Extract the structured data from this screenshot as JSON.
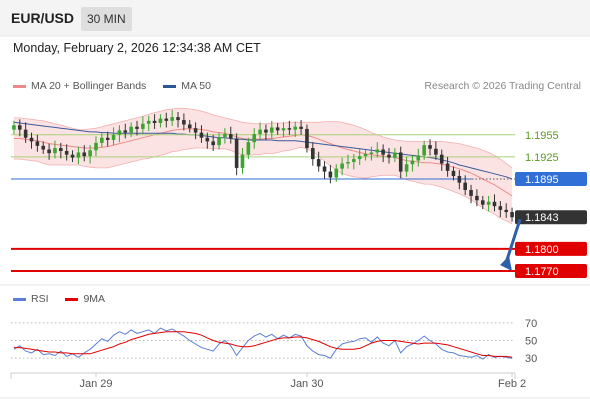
{
  "header": {
    "symbol": "EUR/USD",
    "timeframe": "30 MIN",
    "datetime": "Monday, February 2, 2026 12:34:38 AM CET"
  },
  "legend": {
    "bollinger": {
      "label": "MA 20 + Bollinger Bands",
      "color": "#f08a8a"
    },
    "ma50": {
      "label": "MA 50",
      "color": "#2f5597"
    },
    "copyright": "Research © 2026 Trading Central"
  },
  "rsi_legend": {
    "rsi": {
      "label": "RSI",
      "color": "#5b7fd6"
    },
    "ma9": {
      "label": "9MA",
      "color": "#e00000"
    }
  },
  "chart_data": [
    {
      "type": "candlestick",
      "ylim": [
        1.1755,
        1.2005
      ],
      "x_ticks": [
        {
          "label": "Jan 29",
          "index": 14
        },
        {
          "label": "Jan 30",
          "index": 50
        },
        {
          "label": "Feb 2",
          "index": 85
        }
      ],
      "candles": {
        "count": 86,
        "close": [
          1.1968,
          1.1962,
          1.1951,
          1.1946,
          1.194,
          1.1935,
          1.193,
          1.1937,
          1.1933,
          1.1928,
          1.1924,
          1.1931,
          1.1926,
          1.1934,
          1.1944,
          1.1951,
          1.1948,
          1.1955,
          1.1961,
          1.1958,
          1.1966,
          1.1963,
          1.197,
          1.1974,
          1.1971,
          1.1977,
          1.1974,
          1.1979,
          1.1975,
          1.1969,
          1.1964,
          1.1958,
          1.1951,
          1.1946,
          1.1941,
          1.1952,
          1.1956,
          1.195,
          1.191,
          1.1928,
          1.1945,
          1.1956,
          1.1962,
          1.1958,
          1.1965,
          1.1961,
          1.1964,
          1.1962,
          1.1966,
          1.1963,
          1.1937,
          1.1922,
          1.1912,
          1.1905,
          1.1897,
          1.1909,
          1.1916,
          1.1918,
          1.1922,
          1.1926,
          1.1929,
          1.1931,
          1.1935,
          1.1928,
          1.1924,
          1.1931,
          1.1905,
          1.1915,
          1.192,
          1.1927,
          1.1941,
          1.1936,
          1.1928,
          1.1916,
          1.1906,
          1.1899,
          1.189,
          1.188,
          1.1872,
          1.1866,
          1.186,
          1.1864,
          1.1858,
          1.1853,
          1.185,
          1.1843
        ],
        "open": [
          1.1962,
          1.1968,
          1.1962,
          1.1951,
          1.1946,
          1.194,
          1.1935,
          1.193,
          1.1937,
          1.1933,
          1.1928,
          1.1924,
          1.1931,
          1.1926,
          1.1934,
          1.1944,
          1.1951,
          1.1948,
          1.1955,
          1.1961,
          1.1958,
          1.1966,
          1.1963,
          1.197,
          1.1974,
          1.1971,
          1.1977,
          1.1974,
          1.1979,
          1.1975,
          1.1969,
          1.1964,
          1.1958,
          1.1951,
          1.1946,
          1.1941,
          1.1952,
          1.1956,
          1.195,
          1.191,
          1.1928,
          1.1945,
          1.1956,
          1.1962,
          1.1958,
          1.1965,
          1.1961,
          1.1964,
          1.1962,
          1.1966,
          1.1963,
          1.1937,
          1.1922,
          1.1912,
          1.1905,
          1.1897,
          1.1909,
          1.1916,
          1.1918,
          1.1922,
          1.1926,
          1.1929,
          1.1931,
          1.1935,
          1.1928,
          1.1924,
          1.1931,
          1.1905,
          1.1915,
          1.192,
          1.1927,
          1.1941,
          1.1936,
          1.1928,
          1.1916,
          1.1906,
          1.1899,
          1.189,
          1.188,
          1.1872,
          1.1866,
          1.186,
          1.1864,
          1.1858,
          1.1853,
          1.185
        ],
        "up_color": "#3aa52f",
        "down_color": "#333333"
      },
      "ma20": [
        1.195,
        1.195,
        1.1949,
        1.1948,
        1.1947,
        1.1945,
        1.1943,
        1.1942,
        1.1941,
        1.194,
        1.1939,
        1.1938,
        1.1937,
        1.1937,
        1.1937,
        1.1938,
        1.1939,
        1.1941,
        1.1943,
        1.1945,
        1.1947,
        1.1949,
        1.1951,
        1.1953,
        1.1955,
        1.1957,
        1.1959,
        1.1961,
        1.1962,
        1.1963,
        1.1963,
        1.1963,
        1.1962,
        1.1961,
        1.1959,
        1.1958,
        1.1957,
        1.1955,
        1.1952,
        1.195,
        1.1949,
        1.1949,
        1.1949,
        1.195,
        1.195,
        1.1951,
        1.1952,
        1.1953,
        1.1954,
        1.1955,
        1.1954,
        1.1952,
        1.1949,
        1.1946,
        1.1943,
        1.194,
        1.1937,
        1.1935,
        1.1933,
        1.1931,
        1.1929,
        1.1928,
        1.1927,
        1.1926,
        1.1925,
        1.1924,
        1.1922,
        1.192,
        1.1919,
        1.1918,
        1.1917,
        1.1917,
        1.1916,
        1.1915,
        1.1913,
        1.1911,
        1.1909,
        1.1906,
        1.1903,
        1.1899,
        1.1895,
        1.1891,
        1.1887,
        1.1882,
        1.1877,
        1.1872
      ],
      "bb_upper": [
        1.1978,
        1.1978,
        1.1977,
        1.1976,
        1.1975,
        1.1974,
        1.1972,
        1.197,
        1.1968,
        1.1966,
        1.1964,
        1.1962,
        1.1962,
        1.1963,
        1.1964,
        1.1966,
        1.1968,
        1.197,
        1.1972,
        1.1974,
        1.1976,
        1.1978,
        1.198,
        1.1983,
        1.1985,
        1.1987,
        1.1989,
        1.199,
        1.1991,
        1.1991,
        1.199,
        1.1989,
        1.1987,
        1.1985,
        1.1982,
        1.198,
        1.1978,
        1.1976,
        1.1974,
        1.1972,
        1.1971,
        1.197,
        1.197,
        1.197,
        1.1971,
        1.1971,
        1.1971,
        1.1972,
        1.1972,
        1.1972,
        1.1972,
        1.1972,
        1.1972,
        1.1973,
        1.1973,
        1.1973,
        1.1972,
        1.197,
        1.1968,
        1.1965,
        1.1962,
        1.1958,
        1.1955,
        1.1952,
        1.195,
        1.1948,
        1.1947,
        1.1946,
        1.1946,
        1.1946,
        1.1946,
        1.1946,
        1.1946,
        1.1946,
        1.1945,
        1.1944,
        1.1943,
        1.1941,
        1.1939,
        1.1937,
        1.1934,
        1.1931,
        1.1927,
        1.1922,
        1.1916,
        1.191
      ],
      "bb_lower": [
        1.1922,
        1.1922,
        1.1921,
        1.192,
        1.1919,
        1.1916,
        1.1914,
        1.1914,
        1.1914,
        1.1914,
        1.1914,
        1.1914,
        1.1912,
        1.1911,
        1.191,
        1.191,
        1.191,
        1.1912,
        1.1914,
        1.1916,
        1.1918,
        1.192,
        1.1922,
        1.1923,
        1.1925,
        1.1927,
        1.1929,
        1.1932,
        1.1933,
        1.1935,
        1.1936,
        1.1937,
        1.1937,
        1.1937,
        1.1936,
        1.1936,
        1.1936,
        1.1934,
        1.193,
        1.1928,
        1.1927,
        1.1928,
        1.1928,
        1.193,
        1.1929,
        1.1931,
        1.1933,
        1.1934,
        1.1936,
        1.1938,
        1.1936,
        1.1932,
        1.1926,
        1.1919,
        1.1913,
        1.1907,
        1.1902,
        1.19,
        1.1898,
        1.1897,
        1.1896,
        1.1898,
        1.1899,
        1.19,
        1.19,
        1.19,
        1.1897,
        1.1894,
        1.1892,
        1.189,
        1.1888,
        1.1888,
        1.1886,
        1.1884,
        1.1881,
        1.1878,
        1.1875,
        1.1871,
        1.1867,
        1.1861,
        1.1856,
        1.1851,
        1.1847,
        1.1842,
        1.1838,
        1.1834
      ],
      "ma50": [
        1.1972,
        1.1971,
        1.197,
        1.1969,
        1.1968,
        1.1967,
        1.1966,
        1.1965,
        1.1964,
        1.1963,
        1.1962,
        1.1961,
        1.196,
        1.1959,
        1.1959,
        1.1958,
        1.1958,
        1.1957,
        1.1957,
        1.1957,
        1.1957,
        1.1957,
        1.1957,
        1.1957,
        1.1957,
        1.1957,
        1.1957,
        1.1957,
        1.1956,
        1.1956,
        1.1955,
        1.1955,
        1.1954,
        1.1953,
        1.1952,
        1.1951,
        1.1951,
        1.195,
        1.1949,
        1.1949,
        1.1948,
        1.1948,
        1.1948,
        1.1948,
        1.1948,
        1.1947,
        1.1947,
        1.1947,
        1.1947,
        1.1946,
        1.1945,
        1.1944,
        1.1943,
        1.1942,
        1.1941,
        1.194,
        1.1939,
        1.1938,
        1.1937,
        1.1936,
        1.1935,
        1.1934,
        1.1933,
        1.1932,
        1.1931,
        1.193,
        1.1929,
        1.1928,
        1.1927,
        1.1926,
        1.1925,
        1.1924,
        1.1923,
        1.1921,
        1.1919,
        1.1917,
        1.1914,
        1.1912,
        1.191,
        1.1908,
        1.1906,
        1.1904,
        1.1902,
        1.19,
        1.1898,
        1.1895
      ],
      "levels": [
        {
          "value": 1.1955,
          "label": "1.1955",
          "kind": "resistance",
          "color": "#a8d27a",
          "text_color": "#5a9a1e"
        },
        {
          "value": 1.1925,
          "label": "1.1925",
          "kind": "resistance",
          "color": "#a8d27a",
          "text_color": "#5a9a1e"
        },
        {
          "value": 1.1895,
          "label": "1.1895",
          "kind": "pivot",
          "color": "#2f6fd6",
          "text_color": "#ffffff"
        },
        {
          "value": 1.1843,
          "label": "1.1843",
          "kind": "last-price",
          "color": "#333333",
          "text_color": "#ffffff"
        },
        {
          "value": 1.18,
          "label": "1.1800",
          "kind": "support",
          "color": "#e00000",
          "text_color": "#ffffff"
        },
        {
          "value": 1.177,
          "label": "1.1770",
          "kind": "support",
          "color": "#e00000",
          "text_color": "#ffffff"
        }
      ],
      "arrow": {
        "from_value": 1.1843,
        "to_value": 1.177,
        "color": "#2f5fa8"
      }
    },
    {
      "type": "line",
      "indicator": "RSI",
      "ylim": [
        20,
        80
      ],
      "y_ticks": [
        {
          "value": 70,
          "label": "70"
        },
        {
          "value": 50,
          "label": "50"
        },
        {
          "value": 30,
          "label": "30"
        }
      ],
      "series": [
        {
          "name": "RSI",
          "color": "#5b7fd6",
          "values": [
            40,
            44,
            38,
            36,
            40,
            34,
            35,
            33,
            38,
            32,
            35,
            31,
            36,
            40,
            46,
            52,
            49,
            56,
            60,
            57,
            62,
            58,
            60,
            62,
            58,
            64,
            61,
            63,
            59,
            55,
            50,
            46,
            42,
            40,
            38,
            46,
            50,
            44,
            33,
            42,
            50,
            55,
            58,
            54,
            57,
            52,
            56,
            53,
            57,
            55,
            44,
            38,
            34,
            33,
            30,
            40,
            46,
            48,
            49,
            52,
            53,
            48,
            54,
            47,
            44,
            50,
            36,
            43,
            46,
            50,
            55,
            50,
            46,
            40,
            37,
            36,
            33,
            32,
            31,
            33,
            29,
            34,
            31,
            32,
            31,
            30
          ]
        },
        {
          "name": "9MA",
          "color": "#e00000",
          "values": [
            42,
            42,
            41,
            40,
            39,
            38,
            37,
            37,
            36,
            36,
            35,
            35,
            35,
            35,
            37,
            39,
            41,
            43,
            46,
            48,
            51,
            53,
            55,
            57,
            58,
            59,
            60,
            60,
            60,
            60,
            59,
            58,
            56,
            53,
            50,
            48,
            47,
            46,
            44,
            43,
            43,
            44,
            46,
            48,
            50,
            52,
            53,
            53,
            54,
            54,
            53,
            51,
            49,
            46,
            43,
            41,
            40,
            40,
            40,
            41,
            44,
            47,
            49,
            50,
            50,
            50,
            49,
            48,
            47,
            46,
            47,
            47,
            47,
            46,
            45,
            43,
            41,
            39,
            37,
            35,
            33,
            33,
            32,
            32,
            32,
            31
          ]
        }
      ],
      "ref_line": 30
    }
  ]
}
